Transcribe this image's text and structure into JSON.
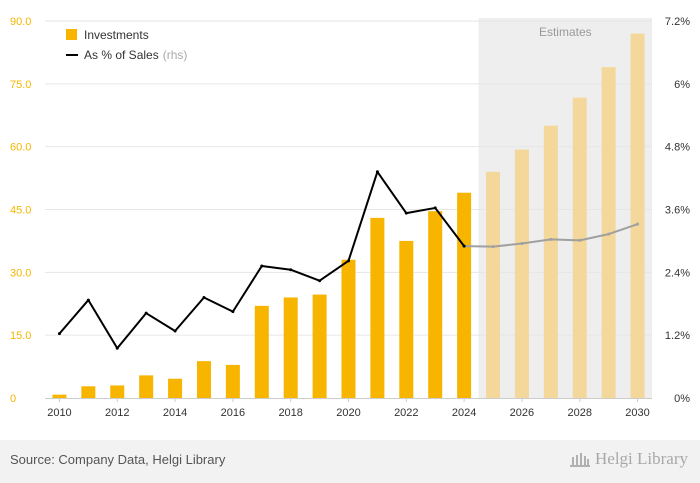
{
  "chart_data": {
    "type": "bar+line",
    "categories": [
      "2010",
      "2011",
      "2012",
      "2013",
      "2014",
      "2015",
      "2016",
      "2017",
      "2018",
      "2019",
      "2020",
      "2021",
      "2022",
      "2023",
      "2024",
      "2025",
      "2026",
      "2027",
      "2028",
      "2029",
      "2030"
    ],
    "x_tick_labels": [
      "2010",
      "2012",
      "2014",
      "2016",
      "2018",
      "2020",
      "2022",
      "2024",
      "2026",
      "2028",
      "2030"
    ],
    "first_estimate_year": "2025",
    "series": [
      {
        "name": "Investments",
        "type": "bar",
        "axis": "left",
        "values": [
          0.8,
          2.8,
          3.0,
          5.4,
          4.6,
          8.8,
          7.9,
          22.0,
          24.0,
          24.7,
          33.0,
          43.0,
          37.5,
          44.6,
          49.0,
          54.0,
          59.3,
          65.0,
          71.7,
          79.0,
          87.0
        ]
      },
      {
        "name": "As % of Sales",
        "name_suffix": "(rhs)",
        "type": "line",
        "axis": "right",
        "unit": "%",
        "values": [
          1.23,
          1.87,
          0.95,
          1.62,
          1.28,
          1.92,
          1.65,
          2.52,
          2.45,
          2.24,
          2.62,
          4.32,
          3.53,
          3.63,
          2.9,
          2.89,
          2.95,
          3.03,
          3.01,
          3.13,
          3.32
        ]
      }
    ],
    "y_left": {
      "ticks": [
        "0",
        "15.0",
        "30.0",
        "45.0",
        "60.0",
        "75.0",
        "90.0"
      ],
      "range": [
        0,
        90
      ]
    },
    "y_right": {
      "ticks": [
        "0%",
        "1.2%",
        "2.4%",
        "3.6%",
        "4.8%",
        "6%",
        "7.2%"
      ],
      "range": [
        0,
        7.2
      ]
    },
    "estimates_label": "Estimates",
    "legend_position": "top-left",
    "colors": {
      "bar": "#f7b500",
      "bar_estimate": "#f4d79b",
      "line": "#000000",
      "line_estimate": "#a0a0a0",
      "estimate_band": "#eeeeee",
      "left_axis_text": "#f7b500"
    }
  },
  "footer": {
    "source": "Source: Company Data, Helgi Library",
    "logo": "Helgi Library"
  }
}
